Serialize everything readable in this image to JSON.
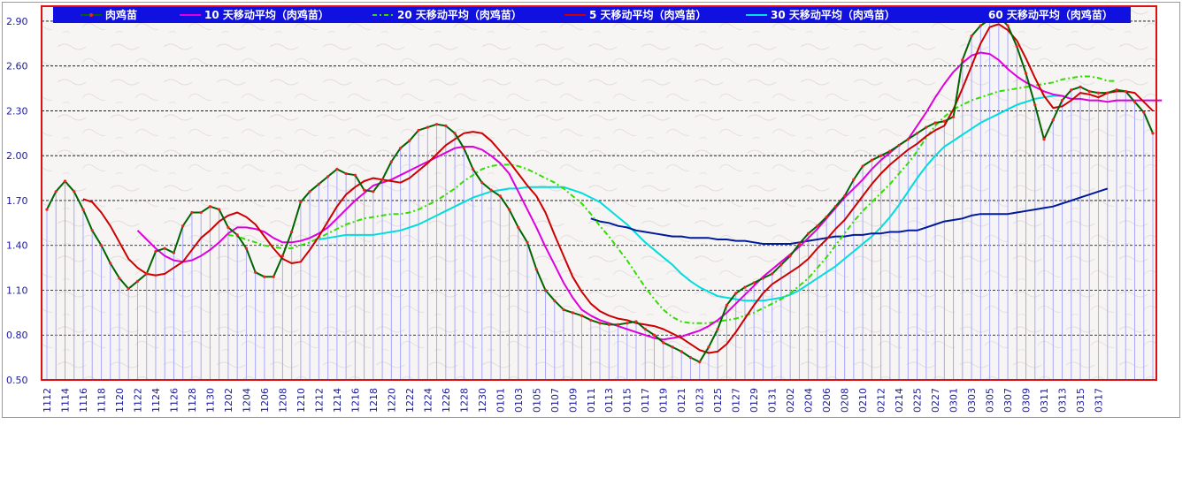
{
  "chart_data": {
    "type": "line",
    "ylim": [
      0.5,
      3.0
    ],
    "yticks": [
      "0.50",
      "0.80",
      "1.10",
      "1.40",
      "1.70",
      "2.00",
      "2.30",
      "2.60",
      "2.90"
    ],
    "x_labels": [
      "1112",
      "1114",
      "1116",
      "1118",
      "1120",
      "1122",
      "1124",
      "1126",
      "1128",
      "1130",
      "1202",
      "1204",
      "1206",
      "1208",
      "1210",
      "1212",
      "1214",
      "1216",
      "1218",
      "1220",
      "1222",
      "1224",
      "1226",
      "1228",
      "1230",
      "0101",
      "0103",
      "0105",
      "0107",
      "0109",
      "0111",
      "0113",
      "0115",
      "0117",
      "0119",
      "0121",
      "0123",
      "0125",
      "0127",
      "0129",
      "0131",
      "0202",
      "0204",
      "0206",
      "0208",
      "0210",
      "0212",
      "0214",
      "0225",
      "0227",
      "0301",
      "0303",
      "0305",
      "0307",
      "0309",
      "0311",
      "0313",
      "0315",
      "0317"
    ],
    "legend_labels": [
      "肉鸡苗",
      "10 天移动平均（肉鸡苗）",
      "20 天移动平均（肉鸡苗）",
      "5 天移动平均（肉鸡苗）",
      "30 天移动平均（肉鸡苗）",
      "60 天移动平均（肉鸡苗）"
    ],
    "series": [
      {
        "name": "肉鸡苗",
        "color": "#006400",
        "style": "line-dots",
        "values": [
          1.64,
          1.76,
          1.83,
          1.76,
          1.64,
          1.5,
          1.4,
          1.28,
          1.18,
          1.11,
          1.16,
          1.21,
          1.36,
          1.38,
          1.35,
          1.53,
          1.62,
          1.62,
          1.66,
          1.64,
          1.52,
          1.47,
          1.38,
          1.22,
          1.19,
          1.19,
          1.33,
          1.49,
          1.69,
          1.76,
          1.81,
          1.86,
          1.91,
          1.88,
          1.87,
          1.77,
          1.76,
          1.84,
          1.96,
          2.05,
          2.1,
          2.17,
          2.19,
          2.21,
          2.2,
          2.15,
          2.05,
          1.91,
          1.82,
          1.77,
          1.73,
          1.64,
          1.52,
          1.42,
          1.24,
          1.1,
          1.03,
          0.97,
          0.95,
          0.93,
          0.9,
          0.88,
          0.87,
          0.87,
          0.88,
          0.89,
          0.84,
          0.8,
          0.75,
          0.72,
          0.69,
          0.65,
          0.62,
          0.72,
          0.84,
          1.0,
          1.08,
          1.12,
          1.15,
          1.18,
          1.21,
          1.27,
          1.33,
          1.41,
          1.48,
          1.53,
          1.59,
          1.66,
          1.73,
          1.84,
          1.93,
          1.97,
          2.0,
          2.03,
          2.07,
          2.11,
          2.15,
          2.19,
          2.22,
          2.23,
          2.26,
          2.64,
          2.8,
          2.87,
          2.91,
          2.93,
          2.87,
          2.73,
          2.55,
          2.34,
          2.11,
          2.24,
          2.37,
          2.44,
          2.46,
          2.43,
          2.42,
          2.42,
          2.44,
          2.43,
          2.36,
          2.29,
          2.15
        ]
      },
      {
        "name": "10 天移动平均（肉鸡苗）",
        "color": "#dd00dd",
        "style": "line",
        "values": [
          null,
          null,
          null,
          null,
          null,
          null,
          null,
          null,
          null,
          null,
          1.5,
          1.44,
          1.38,
          1.33,
          1.3,
          1.29,
          1.3,
          1.33,
          1.37,
          1.42,
          1.48,
          1.52,
          1.52,
          1.51,
          1.49,
          1.45,
          1.42,
          1.42,
          1.43,
          1.45,
          1.48,
          1.52,
          1.58,
          1.64,
          1.7,
          1.75,
          1.8,
          1.82,
          1.84,
          1.87,
          1.9,
          1.93,
          1.96,
          1.99,
          2.02,
          2.05,
          2.06,
          2.06,
          2.04,
          2.0,
          1.95,
          1.88,
          1.76,
          1.64,
          1.52,
          1.39,
          1.27,
          1.15,
          1.05,
          0.97,
          0.93,
          0.9,
          0.88,
          0.86,
          0.84,
          0.82,
          0.8,
          0.78,
          0.77,
          0.78,
          0.79,
          0.81,
          0.83,
          0.86,
          0.9,
          0.95,
          1.01,
          1.07,
          1.13,
          1.19,
          1.24,
          1.29,
          1.34,
          1.39,
          1.45,
          1.51,
          1.58,
          1.65,
          1.72,
          1.78,
          1.84,
          1.91,
          1.97,
          2.02,
          2.07,
          2.11,
          2.2,
          2.29,
          2.39,
          2.48,
          2.56,
          2.62,
          2.67,
          2.69,
          2.68,
          2.64,
          2.58,
          2.53,
          2.49,
          2.46,
          2.43,
          2.41,
          2.4,
          2.38,
          2.38,
          2.37,
          2.37,
          2.36,
          2.37,
          2.37,
          2.37,
          2.37,
          2.37,
          2.37
        ]
      },
      {
        "name": "20 天移动平均（肉鸡苗）",
        "color": "#33dd00",
        "style": "dashdot",
        "values": [
          null,
          null,
          null,
          null,
          null,
          null,
          null,
          null,
          null,
          null,
          null,
          null,
          null,
          null,
          null,
          null,
          null,
          null,
          null,
          null,
          1.47,
          1.46,
          1.44,
          1.42,
          1.4,
          1.39,
          1.38,
          1.38,
          1.4,
          1.42,
          1.45,
          1.48,
          1.51,
          1.54,
          1.56,
          1.58,
          1.59,
          1.6,
          1.61,
          1.61,
          1.62,
          1.64,
          1.67,
          1.7,
          1.74,
          1.78,
          1.83,
          1.87,
          1.91,
          1.93,
          1.94,
          1.94,
          1.93,
          1.91,
          1.88,
          1.85,
          1.82,
          1.78,
          1.73,
          1.68,
          1.61,
          1.53,
          1.46,
          1.38,
          1.3,
          1.21,
          1.12,
          1.04,
          0.97,
          0.92,
          0.89,
          0.88,
          0.88,
          0.88,
          0.89,
          0.9,
          0.91,
          0.93,
          0.95,
          0.98,
          1.01,
          1.04,
          1.08,
          1.13,
          1.18,
          1.25,
          1.32,
          1.4,
          1.48,
          1.56,
          1.63,
          1.69,
          1.75,
          1.81,
          1.88,
          1.95,
          2.03,
          2.12,
          2.2,
          2.26,
          2.31,
          2.34,
          2.37,
          2.39,
          2.41,
          2.43,
          2.44,
          2.45,
          2.46,
          2.47,
          2.48,
          2.49,
          2.51,
          2.52,
          2.53,
          2.53,
          2.52,
          2.5,
          2.5
        ]
      },
      {
        "name": "5 天移动平均（肉鸡苗）",
        "color": "#cc0000",
        "style": "line",
        "values": [
          null,
          null,
          null,
          null,
          1.71,
          1.69,
          1.62,
          1.53,
          1.42,
          1.31,
          1.25,
          1.21,
          1.2,
          1.21,
          1.25,
          1.29,
          1.37,
          1.45,
          1.5,
          1.56,
          1.6,
          1.62,
          1.59,
          1.54,
          1.46,
          1.38,
          1.31,
          1.28,
          1.29,
          1.37,
          1.46,
          1.56,
          1.66,
          1.74,
          1.79,
          1.83,
          1.85,
          1.84,
          1.83,
          1.82,
          1.85,
          1.9,
          1.95,
          2.01,
          2.07,
          2.11,
          2.15,
          2.16,
          2.15,
          2.1,
          2.03,
          1.96,
          1.88,
          1.8,
          1.73,
          1.62,
          1.47,
          1.33,
          1.19,
          1.09,
          1.01,
          0.96,
          0.93,
          0.91,
          0.9,
          0.88,
          0.87,
          0.86,
          0.84,
          0.81,
          0.78,
          0.74,
          0.7,
          0.68,
          0.69,
          0.74,
          0.82,
          0.91,
          1.0,
          1.08,
          1.14,
          1.18,
          1.22,
          1.26,
          1.31,
          1.38,
          1.44,
          1.51,
          1.57,
          1.65,
          1.73,
          1.81,
          1.88,
          1.94,
          1.99,
          2.04,
          2.08,
          2.13,
          2.17,
          2.2,
          2.31,
          2.45,
          2.6,
          2.75,
          2.86,
          2.88,
          2.84,
          2.77,
          2.65,
          2.52,
          2.4,
          2.32,
          2.33,
          2.37,
          2.42,
          2.41,
          2.39,
          2.42,
          2.43,
          2.43,
          2.42,
          2.36,
          2.3
        ]
      },
      {
        "name": "30 天移动平均（肉鸡苗）",
        "color": "#00dddd",
        "style": "line",
        "values": [
          null,
          null,
          null,
          null,
          null,
          null,
          null,
          null,
          null,
          null,
          null,
          null,
          null,
          null,
          null,
          null,
          null,
          null,
          null,
          null,
          null,
          null,
          null,
          null,
          null,
          null,
          null,
          null,
          null,
          null,
          1.44,
          1.45,
          1.46,
          1.47,
          1.47,
          1.47,
          1.47,
          1.48,
          1.49,
          1.5,
          1.52,
          1.54,
          1.57,
          1.6,
          1.63,
          1.66,
          1.69,
          1.72,
          1.74,
          1.76,
          1.77,
          1.78,
          1.78,
          1.79,
          1.79,
          1.79,
          1.79,
          1.79,
          1.77,
          1.75,
          1.72,
          1.69,
          1.64,
          1.59,
          1.54,
          1.48,
          1.42,
          1.37,
          1.32,
          1.27,
          1.21,
          1.16,
          1.12,
          1.09,
          1.06,
          1.05,
          1.04,
          1.03,
          1.03,
          1.03,
          1.04,
          1.05,
          1.07,
          1.1,
          1.14,
          1.18,
          1.22,
          1.26,
          1.31,
          1.36,
          1.41,
          1.46,
          1.52,
          1.59,
          1.67,
          1.76,
          1.85,
          1.93,
          2.0,
          2.06,
          2.1,
          2.14,
          2.18,
          2.22,
          2.25,
          2.28,
          2.31,
          2.34,
          2.36,
          2.38,
          2.39,
          2.4,
          2.4
        ]
      },
      {
        "name": "60 天移动平均（肉鸡苗）",
        "color": "#001a99",
        "style": "line",
        "values": [
          null,
          null,
          null,
          null,
          null,
          null,
          null,
          null,
          null,
          null,
          null,
          null,
          null,
          null,
          null,
          null,
          null,
          null,
          null,
          null,
          null,
          null,
          null,
          null,
          null,
          null,
          null,
          null,
          null,
          null,
          null,
          null,
          null,
          null,
          null,
          null,
          null,
          null,
          null,
          null,
          null,
          null,
          null,
          null,
          null,
          null,
          null,
          null,
          null,
          null,
          null,
          null,
          null,
          null,
          null,
          null,
          null,
          null,
          null,
          null,
          1.58,
          1.56,
          1.55,
          1.53,
          1.52,
          1.5,
          1.49,
          1.48,
          1.47,
          1.46,
          1.46,
          1.45,
          1.45,
          1.45,
          1.44,
          1.44,
          1.43,
          1.43,
          1.42,
          1.41,
          1.41,
          1.41,
          1.41,
          1.42,
          1.43,
          1.44,
          1.45,
          1.46,
          1.46,
          1.47,
          1.47,
          1.48,
          1.48,
          1.49,
          1.49,
          1.5,
          1.5,
          1.52,
          1.54,
          1.56,
          1.57,
          1.58,
          1.6,
          1.61,
          1.61,
          1.61,
          1.61,
          1.62,
          1.63,
          1.64,
          1.65,
          1.66,
          1.68,
          1.7,
          1.72,
          1.74,
          1.76,
          1.78
        ]
      }
    ]
  }
}
